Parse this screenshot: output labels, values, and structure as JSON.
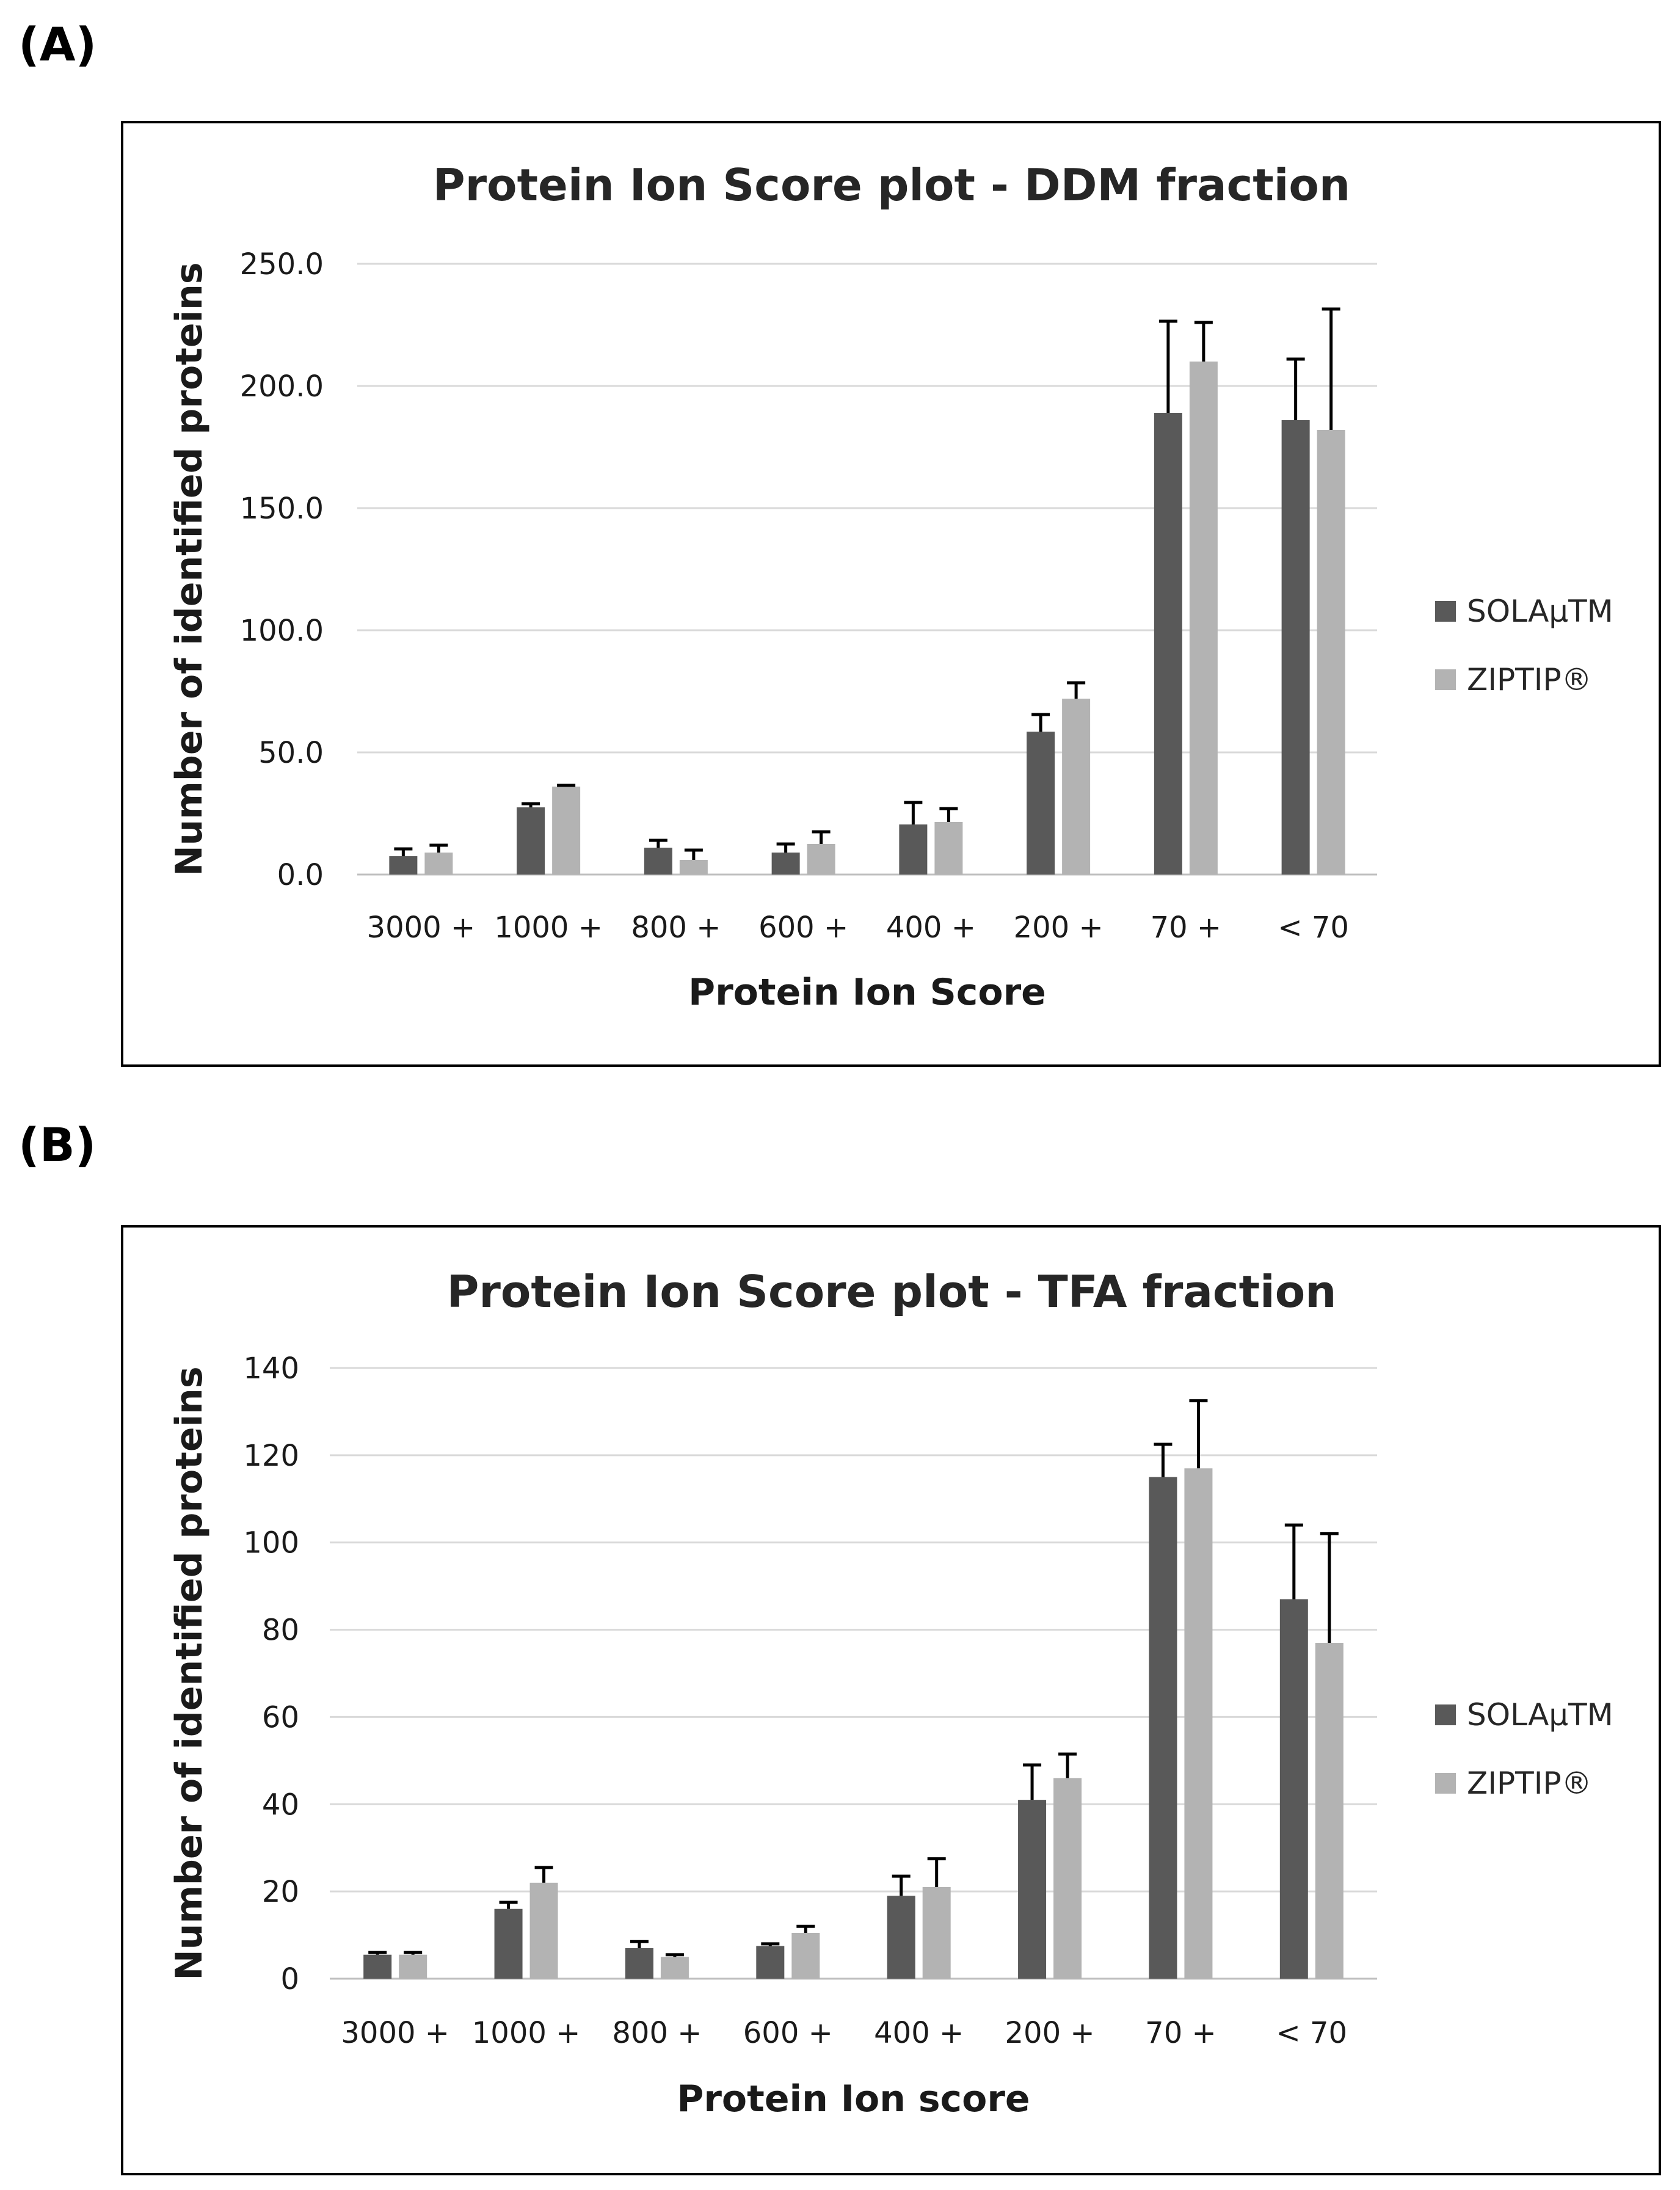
{
  "panels": {
    "a_label": "(A)",
    "b_label": "(B)"
  },
  "colors": {
    "solamu": "#595959",
    "ziptip": "#b3b3b3",
    "grid": "#d9d9d9",
    "errorbar": "#000000"
  },
  "chart_data": [
    {
      "type": "bar",
      "title": "Protein Ion Score plot - DDM fraction",
      "xlabel": "Protein Ion Score",
      "ylabel": "Number of identified proteins",
      "categories": [
        "3000 +",
        "1000 +",
        "800 +",
        "600 +",
        "400 +",
        "200 +",
        "70 +",
        "< 70"
      ],
      "ylim": [
        0,
        250
      ],
      "yticks": [
        0,
        50,
        100,
        150,
        200,
        250
      ],
      "ytick_labels": [
        "0.0",
        "50.0",
        "100.0",
        "150.0",
        "200.0",
        "250.0"
      ],
      "grid": true,
      "legend_position": "right",
      "series": [
        {
          "name": "SOLAμTM",
          "color": "#595959",
          "values": [
            7.5,
            27.5,
            11,
            9,
            20.5,
            58.5,
            189,
            186
          ],
          "errors": [
            3,
            1.5,
            3,
            3.5,
            9,
            7,
            37.5,
            25
          ]
        },
        {
          "name": "ZIPTIP®",
          "color": "#b3b3b3",
          "values": [
            9,
            36,
            6,
            12.5,
            21.5,
            72,
            210,
            182
          ],
          "errors": [
            3,
            0.5,
            4,
            5,
            5.5,
            6.5,
            16,
            49.5
          ]
        }
      ]
    },
    {
      "type": "bar",
      "title": "Protein Ion Score plot - TFA fraction",
      "xlabel": "Protein Ion score",
      "ylabel": "Number of identified proteins",
      "categories": [
        "3000 +",
        "1000 +",
        "800 +",
        "600 +",
        "400 +",
        "200 +",
        "70 +",
        "< 70"
      ],
      "ylim": [
        0,
        140
      ],
      "yticks": [
        0,
        20,
        40,
        60,
        80,
        100,
        120,
        140
      ],
      "ytick_labels": [
        "0",
        "20",
        "40",
        "60",
        "80",
        "100",
        "120",
        "140"
      ],
      "grid": true,
      "legend_position": "right",
      "series": [
        {
          "name": "SOLAμTM",
          "color": "#595959",
          "values": [
            5.5,
            16,
            7,
            7.5,
            19,
            41,
            115,
            87
          ],
          "errors": [
            0.5,
            1.5,
            1.5,
            0.5,
            4.5,
            8,
            7.5,
            17
          ]
        },
        {
          "name": "ZIPTIP®",
          "color": "#b3b3b3",
          "values": [
            5.5,
            22,
            5,
            10.5,
            21,
            46,
            117,
            77
          ],
          "errors": [
            0.5,
            3.5,
            0.5,
            1.5,
            6.5,
            5.5,
            15.5,
            25
          ]
        }
      ]
    }
  ]
}
